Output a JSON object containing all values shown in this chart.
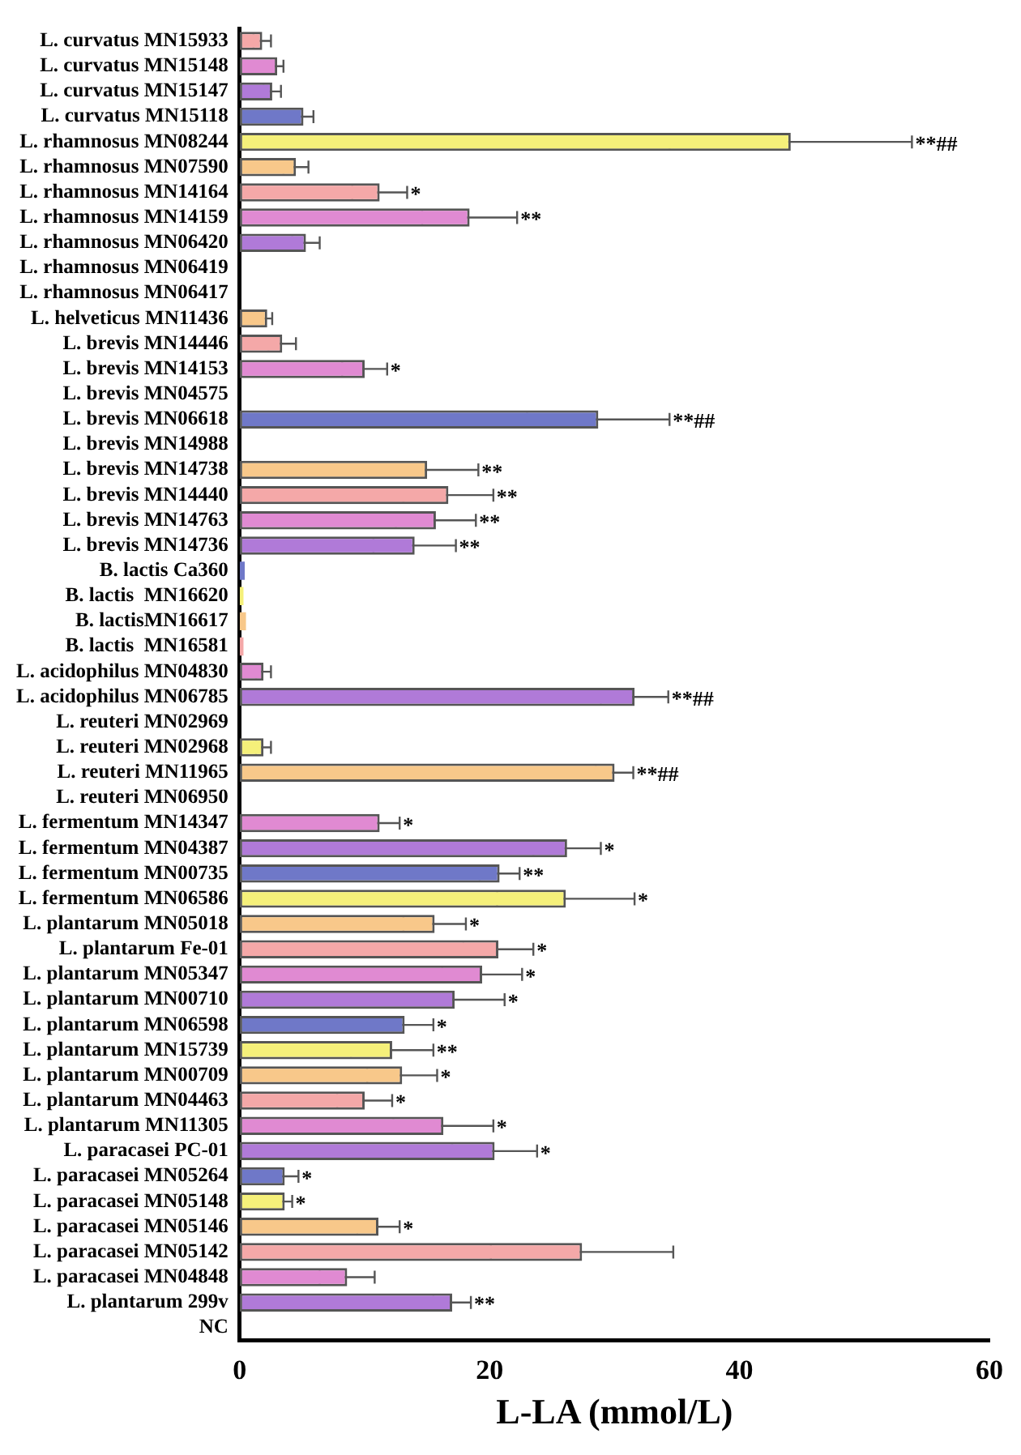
{
  "chart_data": {
    "type": "bar",
    "orientation": "horizontal",
    "xlabel": "L-LA (mmol/L)",
    "categories": [
      "L. curvatus MN15933",
      "L. curvatus MN15148",
      "L. curvatus MN15147",
      "L. curvatus MN15118",
      "L. rhamnosus MN08244",
      "L. rhamnosus MN07590",
      "L. rhamnosus MN14164",
      "L. rhamnosus MN14159",
      "L. rhamnosus MN06420",
      "L. rhamnosus MN06419",
      "L. rhamnosus MN06417",
      "L. helveticus MN11436",
      "L. brevis MN14446",
      "L. brevis MN14153",
      "L. brevis MN04575",
      "L. brevis MN06618",
      "L. brevis MN14988",
      "L. brevis MN14738",
      "L. brevis MN14440",
      "L. brevis MN14763",
      "L. brevis MN14736",
      "B. lactis Ca360",
      "B. lactis  MN16620",
      "B. lactisMN16617",
      "B. lactis  MN16581",
      "L. acidophilus MN04830",
      "L. acidophilus MN06785",
      "L. reuteri MN02969",
      "L. reuteri MN02968",
      "L. reuteri MN11965",
      "L. reuteri MN06950",
      "L. fermentum MN14347",
      "L. fermentum MN04387",
      "L. fermentum MN00735",
      "L. fermentum MN06586",
      "L. plantarum MN05018",
      "L. plantarum Fe-01",
      "L. plantarum MN05347",
      "L. plantarum MN00710",
      "L. plantarum MN06598",
      "L. plantarum MN15739",
      "L. plantarum MN00709",
      "L. plantarum MN04463",
      "L. plantarum MN11305",
      "L. paracasei PC-01",
      "L. paracasei MN05264",
      "L. paracasei MN05148",
      "L. paracasei MN05146",
      "L. paracasei MN05142",
      "L. paracasei MN04848",
      "L. plantarum 299v",
      "NC"
    ],
    "values": [
      1.8,
      3.0,
      2.6,
      5.1,
      44.1,
      4.5,
      11.2,
      18.4,
      5.3,
      0,
      0,
      2.2,
      3.4,
      10.0,
      0,
      28.7,
      0,
      15.0,
      16.7,
      15.7,
      14.0,
      0.4,
      0.3,
      0.5,
      0.3,
      1.9,
      31.6,
      0,
      1.9,
      30.0,
      0,
      11.2,
      26.2,
      20.8,
      26.1,
      15.6,
      20.7,
      19.4,
      17.2,
      13.2,
      12.2,
      13.0,
      10.0,
      16.3,
      20.4,
      3.6,
      3.6,
      11.1,
      27.4,
      8.6,
      17.0,
      0
    ],
    "errors": [
      0.7,
      0.5,
      0.7,
      0.8,
      9.7,
      1.0,
      2.2,
      3.8,
      1.1,
      null,
      null,
      0.4,
      1.1,
      1.8,
      null,
      5.7,
      null,
      4.1,
      3.6,
      3.2,
      3.3,
      null,
      null,
      null,
      null,
      0.6,
      2.7,
      null,
      0.6,
      1.5,
      null,
      1.6,
      2.7,
      1.6,
      5.5,
      2.5,
      2.8,
      3.2,
      4.0,
      2.3,
      3.3,
      2.8,
      2.2,
      4.0,
      3.4,
      1.1,
      0.6,
      1.7,
      7.3,
      2.2,
      1.5,
      null
    ],
    "colors": [
      "#f4a8a8",
      "#e08ad2",
      "#b07ad8",
      "#6f78c8",
      "#f5f07a",
      "#f8c88a",
      "#f4a8a8",
      "#e08ad2",
      "#b07ad8",
      "#6f78c8",
      "#f5f07a",
      "#f8c88a",
      "#f4a8a8",
      "#e08ad2",
      "#b07ad8",
      "#6f78c8",
      "#f5f07a",
      "#f8c88a",
      "#f4a8a8",
      "#e08ad2",
      "#b07ad8",
      "#6f78c8",
      "#f5f07a",
      "#f8c88a",
      "#f4a8a8",
      "#e08ad2",
      "#b07ad8",
      "#6f78c8",
      "#f5f07a",
      "#f8c88a",
      "#f4a8a8",
      "#e08ad2",
      "#b07ad8",
      "#6f78c8",
      "#f5f07a",
      "#f8c88a",
      "#f4a8a8",
      "#e08ad2",
      "#b07ad8",
      "#6f78c8",
      "#f5f07a",
      "#f8c88a",
      "#f4a8a8",
      "#e08ad2",
      "#b07ad8",
      "#6f78c8",
      "#f5f07a",
      "#f8c88a",
      "#f4a8a8",
      "#e08ad2",
      "#b07ad8",
      "#6f78c8"
    ],
    "xlim": [
      0,
      60
    ],
    "xticks": [
      0,
      20,
      40,
      60
    ],
    "grid": false,
    "legend": false,
    "annotations": [
      {
        "text": "**##",
        "x": 53.8,
        "y": "L. rhamnosus MN08244"
      },
      {
        "text": "*",
        "x": 13.4,
        "y": "L. rhamnosus MN14164"
      },
      {
        "text": "**",
        "x": 22.2,
        "y": "L. rhamnosus MN14159"
      },
      {
        "text": "*",
        "x": 11.8,
        "y": "L. brevis MN14153"
      },
      {
        "text": "**##",
        "x": 34.4,
        "y": "L. brevis MN06618"
      },
      {
        "text": "**",
        "x": 19.1,
        "y": "L. brevis MN14738"
      },
      {
        "text": "**",
        "x": 20.3,
        "y": "L. brevis MN14440"
      },
      {
        "text": "**",
        "x": 18.9,
        "y": "L. brevis MN14763"
      },
      {
        "text": "**",
        "x": 17.3,
        "y": "L. brevis MN14736"
      },
      {
        "text": "**##",
        "x": 34.3,
        "y": "L. acidophilus MN06785"
      },
      {
        "text": "**##",
        "x": 31.5,
        "y": "L. reuteri MN11965"
      },
      {
        "text": "*",
        "x": 12.8,
        "y": "L. fermentum MN14347"
      },
      {
        "text": "*",
        "x": 28.9,
        "y": "L. fermentum MN04387"
      },
      {
        "text": "**",
        "x": 22.4,
        "y": "L. fermentum MN00735"
      },
      {
        "text": "*",
        "x": 31.6,
        "y": "L. fermentum MN06586"
      },
      {
        "text": "*",
        "x": 18.1,
        "y": "L. plantarum MN05018"
      },
      {
        "text": "*",
        "x": 23.5,
        "y": "L. plantarum Fe-01"
      },
      {
        "text": "*",
        "x": 22.6,
        "y": "L. plantarum MN05347"
      },
      {
        "text": "*",
        "x": 21.2,
        "y": "L. plantarum MN00710"
      },
      {
        "text": "*",
        "x": 15.5,
        "y": "L. plantarum MN06598"
      },
      {
        "text": "**",
        "x": 15.5,
        "y": "L. plantarum MN15739"
      },
      {
        "text": "*",
        "x": 15.8,
        "y": "L. plantarum MN00709"
      },
      {
        "text": "*",
        "x": 12.2,
        "y": "L. plantarum MN04463"
      },
      {
        "text": "*",
        "x": 20.3,
        "y": "L. plantarum MN11305"
      },
      {
        "text": "*",
        "x": 23.8,
        "y": "L. paracasei PC-01"
      },
      {
        "text": "*",
        "x": 4.7,
        "y": "L. paracasei MN05264"
      },
      {
        "text": "*",
        "x": 4.2,
        "y": "L. paracasei MN05148"
      },
      {
        "text": "*",
        "x": 12.8,
        "y": "L. paracasei MN05146"
      },
      {
        "text": "**",
        "x": 18.5,
        "y": "L. plantarum 299v"
      }
    ]
  }
}
